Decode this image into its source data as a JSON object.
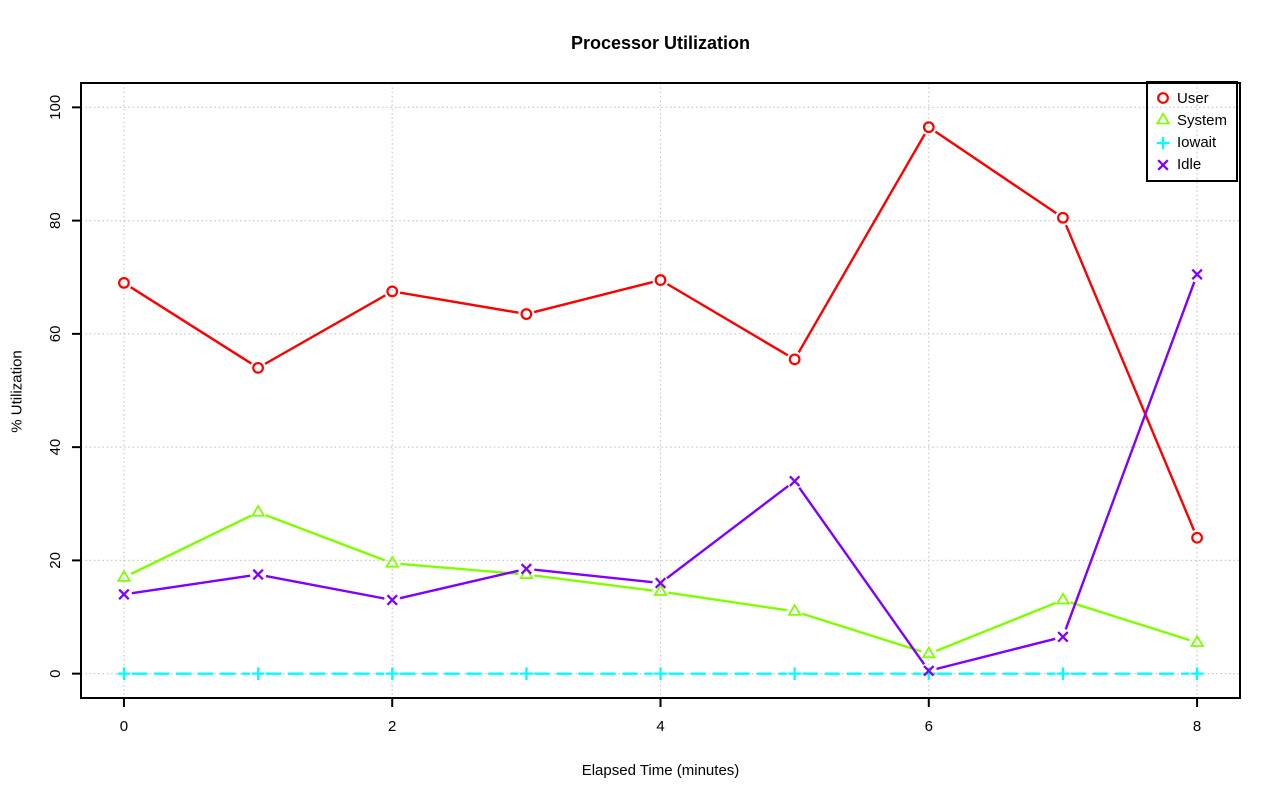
{
  "figure": {
    "title": "Processor Utilization",
    "xlabel": "Elapsed Time (minutes)",
    "ylabel": "% Utilization"
  },
  "chart_data": {
    "type": "line",
    "title": "Processor Utilization",
    "xlabel": "Elapsed Time (minutes)",
    "ylabel": "% Utilization",
    "x": [
      0,
      1,
      2,
      3,
      4,
      5,
      6,
      7,
      8
    ],
    "xticks": [
      0,
      2,
      4,
      6,
      8
    ],
    "yticks": [
      0,
      20,
      40,
      60,
      80,
      100
    ],
    "xlim": [
      -0.32,
      8.32
    ],
    "ylim": [
      -4.3,
      104.3
    ],
    "grid": true,
    "grid_style": "dotted",
    "grid_color": "#c8c8c8",
    "legend_position": "top-right",
    "series": [
      {
        "name": "User",
        "color": "#ff0000",
        "marker": "circle",
        "line": "solid",
        "values": [
          69,
          54,
          67.5,
          63.5,
          69.5,
          55.5,
          96.5,
          80.5,
          24
        ]
      },
      {
        "name": "System",
        "color": "#80ff00",
        "marker": "triangle",
        "line": "solid",
        "values": [
          17,
          28.5,
          19.5,
          17.5,
          14.5,
          11,
          3.5,
          13,
          5.5
        ]
      },
      {
        "name": "Iowait",
        "color": "#00ffff",
        "marker": "plus",
        "line": "dashed",
        "values": [
          0,
          0,
          0,
          0,
          0,
          0,
          0,
          0,
          0
        ]
      },
      {
        "name": "Idle",
        "color": "#8000ff",
        "marker": "x",
        "line": "solid",
        "values": [
          14,
          17.5,
          13,
          18.5,
          16,
          34,
          0.5,
          6.5,
          70.5
        ]
      }
    ]
  }
}
